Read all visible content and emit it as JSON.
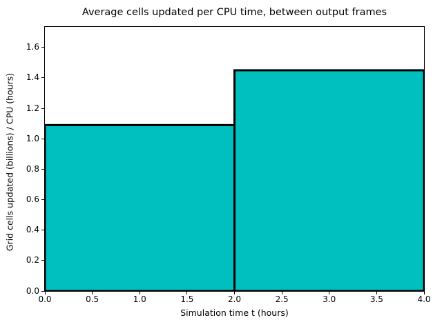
{
  "chart_data": {
    "type": "bar",
    "title": "Average cells updated per CPU time, between output frames",
    "xlabel": "Simulation time t (hours)",
    "ylabel": "Grid cells updated (billions) / CPU (hours)",
    "bars": [
      {
        "x_start": 0.0,
        "x_end": 2.0,
        "value": 1.09
      },
      {
        "x_start": 2.0,
        "x_end": 4.0,
        "value": 1.45
      }
    ],
    "xlim": [
      0.0,
      4.0
    ],
    "ylim": [
      0.0,
      1.735
    ],
    "xtick_values": [
      0.0,
      0.5,
      1.0,
      1.5,
      2.0,
      2.5,
      3.0,
      3.5,
      4.0
    ],
    "xtick_labels": [
      "0.0",
      "0.5",
      "1.0",
      "1.5",
      "2.0",
      "2.5",
      "3.0",
      "3.5",
      "4.0"
    ],
    "ytick_values": [
      0.0,
      0.2,
      0.4,
      0.6,
      0.8,
      1.0,
      1.2,
      1.4,
      1.6
    ],
    "ytick_labels": [
      "0.0",
      "0.2",
      "0.4",
      "0.6",
      "0.8",
      "1.0",
      "1.2",
      "1.4",
      "1.6"
    ],
    "grid": false,
    "legend": null,
    "colors": {
      "bar_fill": "#00BFBF",
      "bar_edge": "#000000",
      "axes_edge": "#000000",
      "background": "#FFFFFF",
      "text": "#000000"
    }
  }
}
